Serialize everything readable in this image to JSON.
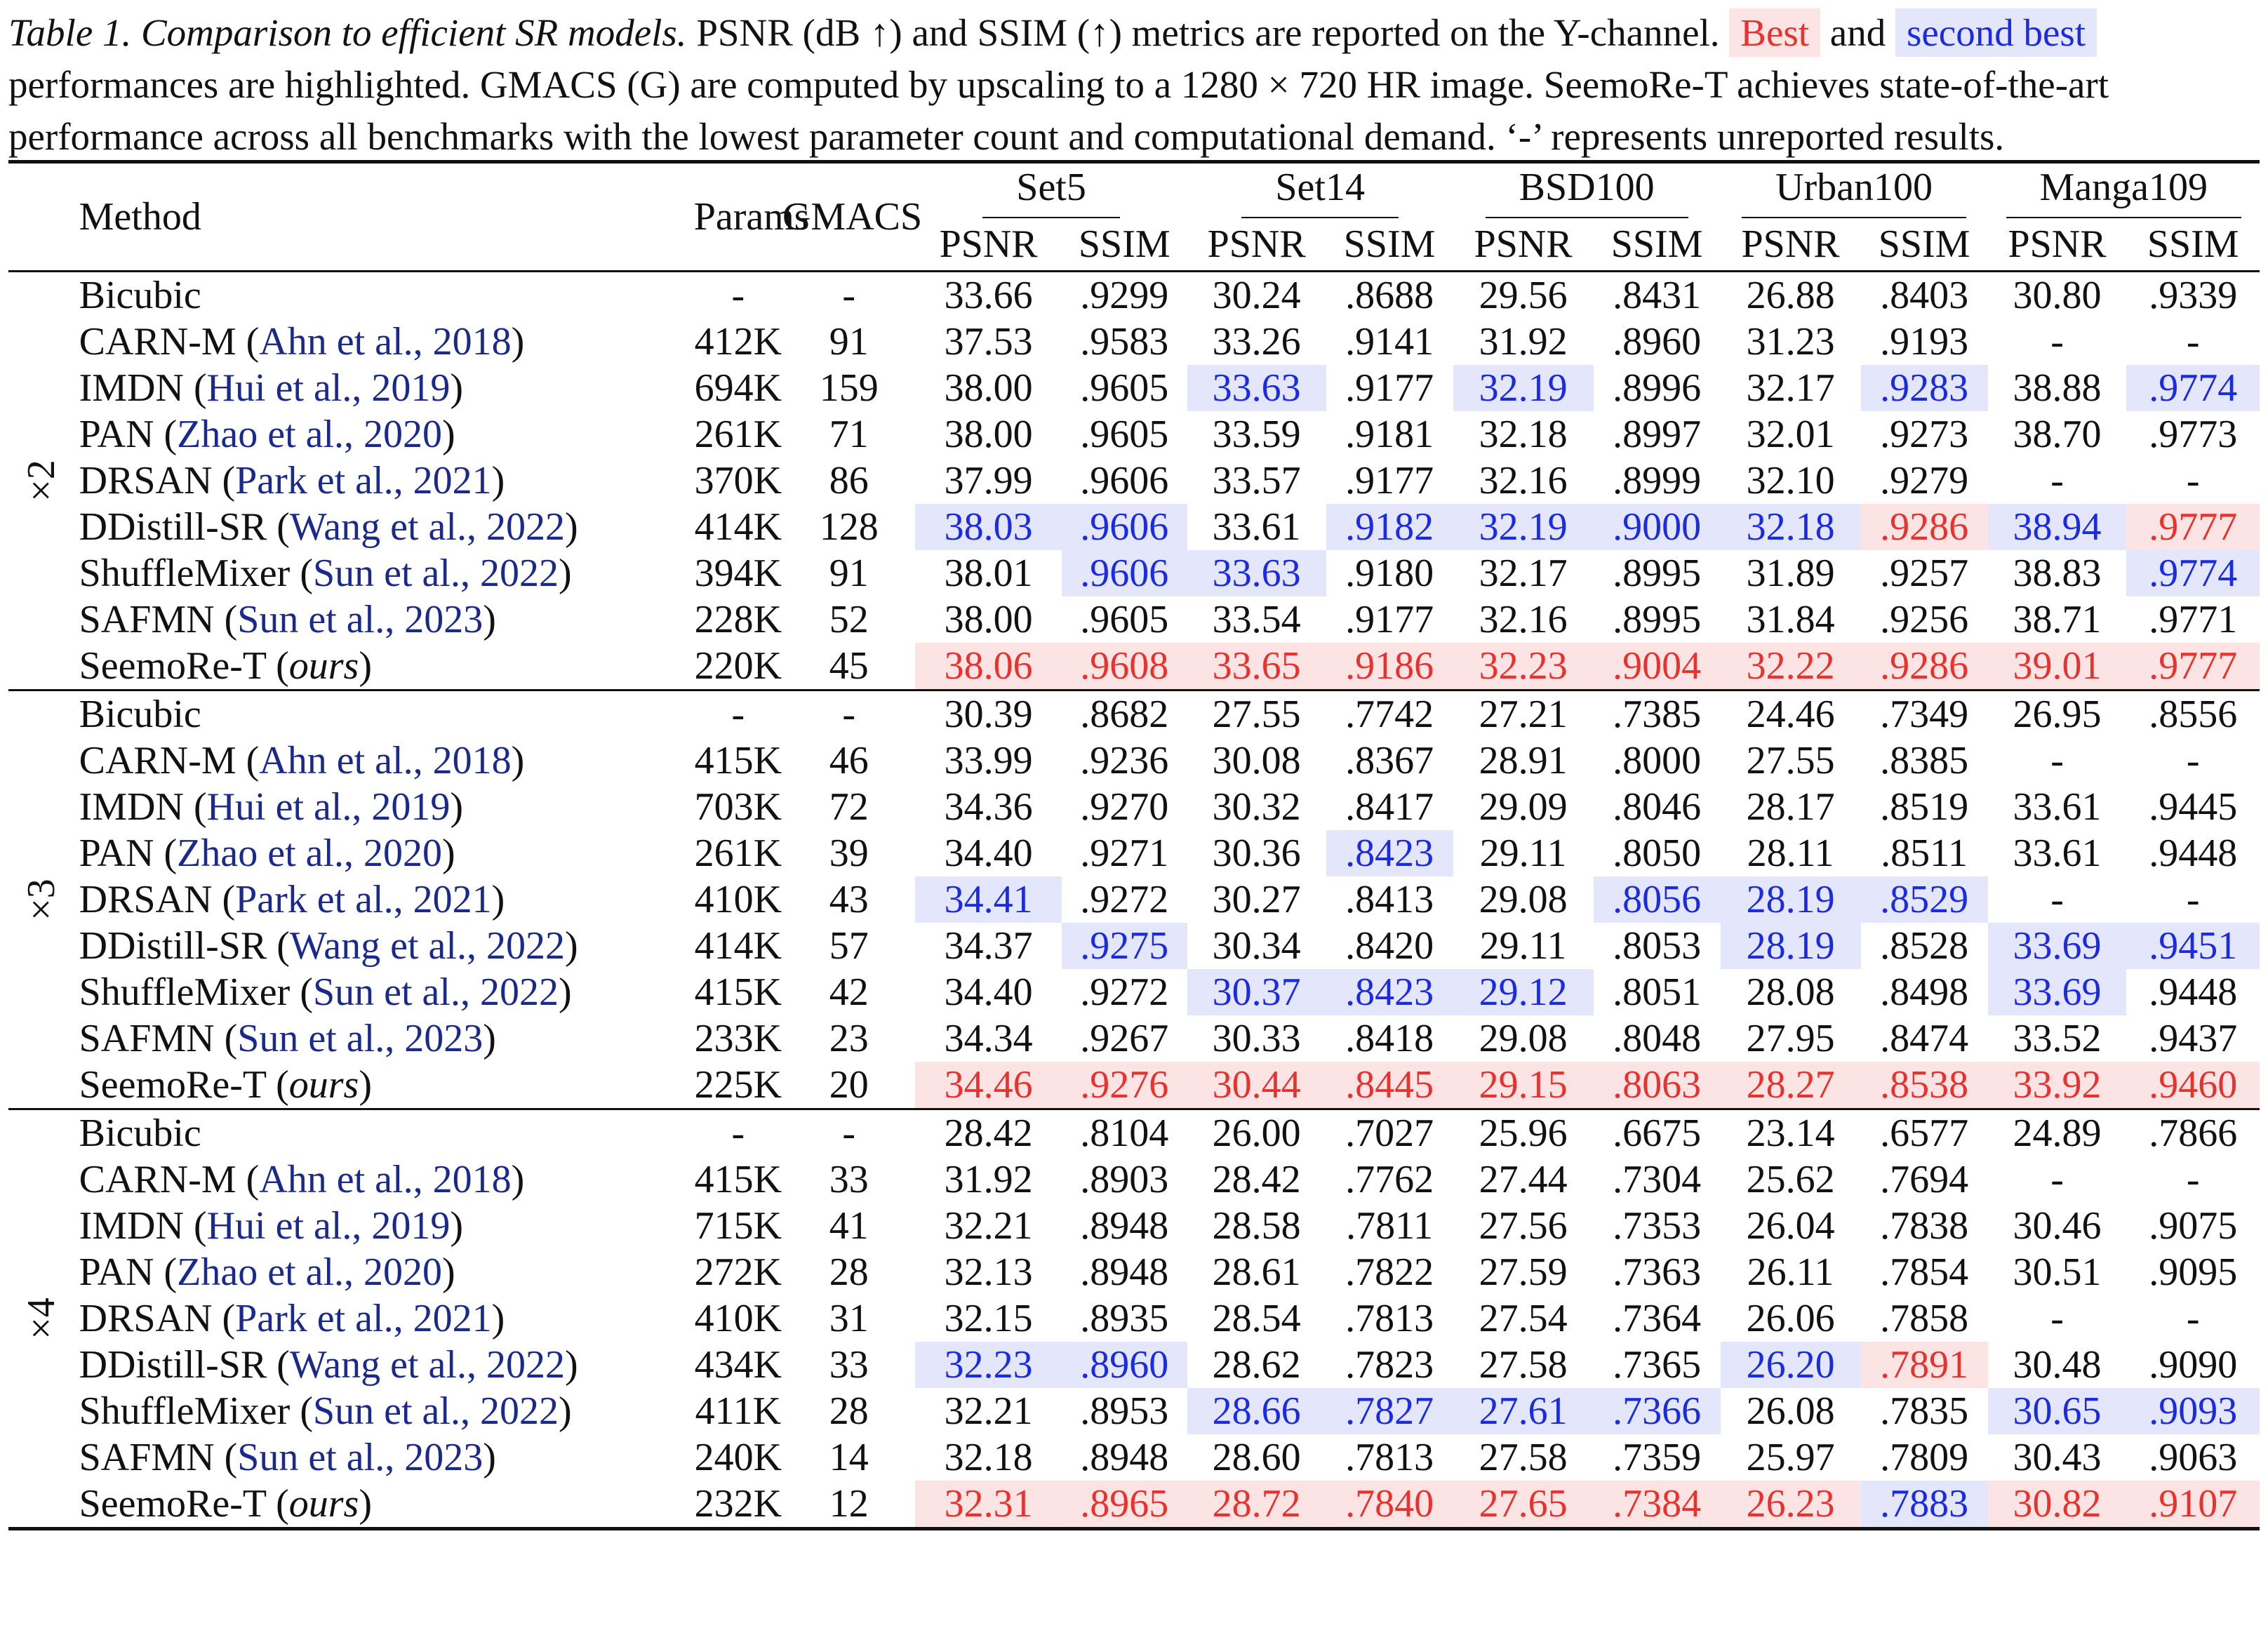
{
  "caption": {
    "label": "Table 1.",
    "title": "Comparison to efficient SR models.",
    "line1_a": "PSNR (dB ↑) and SSIM (↑) metrics are reported on the Y-channel.",
    "best_label": "Best",
    "and_word": "and",
    "second_label": "second best",
    "line2": "performances are highlighted. GMACS (G) are computed by upscaling to a 1280 × 720 HR image. SeemoRe-T achieves state-of-the-art",
    "line3": "performance across all benchmarks with the lowest parameter count and computational demand. ‘-’ represents unreported results."
  },
  "header": {
    "method": "Method",
    "params": "Params",
    "gmacs": "GMACS",
    "datasets": [
      "Set5",
      "Set14",
      "BSD100",
      "Urban100",
      "Manga109"
    ],
    "psnr": "PSNR",
    "ssim": "SSIM"
  },
  "highlight_colors": {
    "best": "#e8322d",
    "best_bg": "#fce4e4",
    "second": "#1b2be0",
    "second_bg": "#e4e6fb"
  },
  "groups": [
    {
      "scale": "×2",
      "rows": [
        {
          "name": "Bicubic",
          "cite": "",
          "params": "-",
          "gmacs": "-",
          "vals": [
            "33.66",
            ".9299",
            "30.24",
            ".8688",
            "29.56",
            ".8431",
            "26.88",
            ".8403",
            "30.80",
            ".9339"
          ],
          "hl": [
            "",
            "",
            "",
            "",
            "",
            "",
            "",
            "",
            "",
            ""
          ]
        },
        {
          "name": "CARN-M",
          "cite": "Ahn et al., 2018",
          "params": "412K",
          "gmacs": "91",
          "vals": [
            "37.53",
            ".9583",
            "33.26",
            ".9141",
            "31.92",
            ".8960",
            "31.23",
            ".9193",
            "-",
            "-"
          ],
          "hl": [
            "",
            "",
            "",
            "",
            "",
            "",
            "",
            "",
            "",
            ""
          ]
        },
        {
          "name": "IMDN",
          "cite": "Hui et al., 2019",
          "params": "694K",
          "gmacs": "159",
          "vals": [
            "38.00",
            ".9605",
            "33.63",
            ".9177",
            "32.19",
            ".8996",
            "32.17",
            ".9283",
            "38.88",
            ".9774"
          ],
          "hl": [
            "",
            "",
            "s",
            "",
            "s",
            "",
            "",
            "s",
            "",
            "s"
          ]
        },
        {
          "name": "PAN",
          "cite": "Zhao et al., 2020",
          "params": "261K",
          "gmacs": "71",
          "vals": [
            "38.00",
            ".9605",
            "33.59",
            ".9181",
            "32.18",
            ".8997",
            "32.01",
            ".9273",
            "38.70",
            ".9773"
          ],
          "hl": [
            "",
            "",
            "",
            "",
            "",
            "",
            "",
            "",
            "",
            ""
          ]
        },
        {
          "name": "DRSAN",
          "cite": "Park et al., 2021",
          "params": "370K",
          "gmacs": "86",
          "vals": [
            "37.99",
            ".9606",
            "33.57",
            ".9177",
            "32.16",
            ".8999",
            "32.10",
            ".9279",
            "-",
            "-"
          ],
          "hl": [
            "",
            "",
            "",
            "",
            "",
            "",
            "",
            "",
            "",
            ""
          ]
        },
        {
          "name": "DDistill-SR",
          "cite": "Wang et al., 2022",
          "params": "414K",
          "gmacs": "128",
          "vals": [
            "38.03",
            ".9606",
            "33.61",
            ".9182",
            "32.19",
            ".9000",
            "32.18",
            ".9286",
            "38.94",
            ".9777"
          ],
          "hl": [
            "s",
            "s",
            "",
            "s",
            "s",
            "s",
            "s",
            "b",
            "s",
            "b"
          ]
        },
        {
          "name": "ShuffleMixer",
          "cite": "Sun et al., 2022",
          "params": "394K",
          "gmacs": "91",
          "vals": [
            "38.01",
            ".9606",
            "33.63",
            ".9180",
            "32.17",
            ".8995",
            "31.89",
            ".9257",
            "38.83",
            ".9774"
          ],
          "hl": [
            "",
            "s",
            "s",
            "",
            "",
            "",
            "",
            "",
            "",
            "s"
          ]
        },
        {
          "name": "SAFMN",
          "cite": "Sun et al., 2023",
          "params": "228K",
          "gmacs": "52",
          "vals": [
            "38.00",
            ".9605",
            "33.54",
            ".9177",
            "32.16",
            ".8995",
            "31.84",
            ".9256",
            "38.71",
            ".9771"
          ],
          "hl": [
            "",
            "",
            "",
            "",
            "",
            "",
            "",
            "",
            "",
            ""
          ]
        },
        {
          "name": "SeemoRe-T",
          "ours": "ours",
          "cite": "",
          "params": "220K",
          "gmacs": "45",
          "vals": [
            "38.06",
            ".9608",
            "33.65",
            ".9186",
            "32.23",
            ".9004",
            "32.22",
            ".9286",
            "39.01",
            ".9777"
          ],
          "hl": [
            "b",
            "b",
            "b",
            "b",
            "b",
            "b",
            "b",
            "b",
            "b",
            "b"
          ]
        }
      ]
    },
    {
      "scale": "×3",
      "rows": [
        {
          "name": "Bicubic",
          "cite": "",
          "params": "-",
          "gmacs": "-",
          "vals": [
            "30.39",
            ".8682",
            "27.55",
            ".7742",
            "27.21",
            ".7385",
            "24.46",
            ".7349",
            "26.95",
            ".8556"
          ],
          "hl": [
            "",
            "",
            "",
            "",
            "",
            "",
            "",
            "",
            "",
            ""
          ]
        },
        {
          "name": "CARN-M",
          "cite": "Ahn et al., 2018",
          "params": "415K",
          "gmacs": "46",
          "vals": [
            "33.99",
            ".9236",
            "30.08",
            ".8367",
            "28.91",
            ".8000",
            "27.55",
            ".8385",
            "-",
            "-"
          ],
          "hl": [
            "",
            "",
            "",
            "",
            "",
            "",
            "",
            "",
            "",
            ""
          ]
        },
        {
          "name": "IMDN",
          "cite": "Hui et al., 2019",
          "params": "703K",
          "gmacs": "72",
          "vals": [
            "34.36",
            ".9270",
            "30.32",
            ".8417",
            "29.09",
            ".8046",
            "28.17",
            ".8519",
            "33.61",
            ".9445"
          ],
          "hl": [
            "",
            "",
            "",
            "",
            "",
            "",
            "",
            "",
            "",
            ""
          ]
        },
        {
          "name": "PAN",
          "cite": "Zhao et al., 2020",
          "params": "261K",
          "gmacs": "39",
          "vals": [
            "34.40",
            ".9271",
            "30.36",
            ".8423",
            "29.11",
            ".8050",
            "28.11",
            ".8511",
            "33.61",
            ".9448"
          ],
          "hl": [
            "",
            "",
            "",
            "s",
            "",
            "",
            "",
            "",
            "",
            ""
          ]
        },
        {
          "name": "DRSAN",
          "cite": "Park et al., 2021",
          "params": "410K",
          "gmacs": "43",
          "vals": [
            "34.41",
            ".9272",
            "30.27",
            ".8413",
            "29.08",
            ".8056",
            "28.19",
            ".8529",
            "-",
            "-"
          ],
          "hl": [
            "s",
            "",
            "",
            "",
            "",
            "s",
            "s",
            "s",
            "",
            ""
          ]
        },
        {
          "name": "DDistill-SR",
          "cite": "Wang et al., 2022",
          "params": "414K",
          "gmacs": "57",
          "vals": [
            "34.37",
            ".9275",
            "30.34",
            ".8420",
            "29.11",
            ".8053",
            "28.19",
            ".8528",
            "33.69",
            ".9451"
          ],
          "hl": [
            "",
            "s",
            "",
            "",
            "",
            "",
            "s",
            "",
            "s",
            "s"
          ]
        },
        {
          "name": "ShuffleMixer",
          "cite": "Sun et al., 2022",
          "params": "415K",
          "gmacs": "42",
          "vals": [
            "34.40",
            ".9272",
            "30.37",
            ".8423",
            "29.12",
            ".8051",
            "28.08",
            ".8498",
            "33.69",
            ".9448"
          ],
          "hl": [
            "",
            "",
            "s",
            "s",
            "s",
            "",
            "",
            "",
            "s",
            ""
          ]
        },
        {
          "name": "SAFMN",
          "cite": "Sun et al., 2023",
          "params": "233K",
          "gmacs": "23",
          "vals": [
            "34.34",
            ".9267",
            "30.33",
            ".8418",
            "29.08",
            ".8048",
            "27.95",
            ".8474",
            "33.52",
            ".9437"
          ],
          "hl": [
            "",
            "",
            "",
            "",
            "",
            "",
            "",
            "",
            "",
            ""
          ]
        },
        {
          "name": "SeemoRe-T",
          "ours": "ours",
          "cite": "",
          "params": "225K",
          "gmacs": "20",
          "vals": [
            "34.46",
            ".9276",
            "30.44",
            ".8445",
            "29.15",
            ".8063",
            "28.27",
            ".8538",
            "33.92",
            ".9460"
          ],
          "hl": [
            "b",
            "b",
            "b",
            "b",
            "b",
            "b",
            "b",
            "b",
            "b",
            "b"
          ]
        }
      ]
    },
    {
      "scale": "×4",
      "rows": [
        {
          "name": "Bicubic",
          "cite": "",
          "params": "-",
          "gmacs": "-",
          "vals": [
            "28.42",
            ".8104",
            "26.00",
            ".7027",
            "25.96",
            ".6675",
            "23.14",
            ".6577",
            "24.89",
            ".7866"
          ],
          "hl": [
            "",
            "",
            "",
            "",
            "",
            "",
            "",
            "",
            "",
            ""
          ]
        },
        {
          "name": "CARN-M",
          "cite": "Ahn et al., 2018",
          "params": "415K",
          "gmacs": "33",
          "vals": [
            "31.92",
            ".8903",
            "28.42",
            ".7762",
            "27.44",
            ".7304",
            "25.62",
            ".7694",
            "-",
            "-"
          ],
          "hl": [
            "",
            "",
            "",
            "",
            "",
            "",
            "",
            "",
            "",
            ""
          ]
        },
        {
          "name": "IMDN",
          "cite": "Hui et al., 2019",
          "params": "715K",
          "gmacs": "41",
          "vals": [
            "32.21",
            ".8948",
            "28.58",
            ".7811",
            "27.56",
            ".7353",
            "26.04",
            ".7838",
            "30.46",
            ".9075"
          ],
          "hl": [
            "",
            "",
            "",
            "",
            "",
            "",
            "",
            "",
            "",
            ""
          ]
        },
        {
          "name": "PAN",
          "cite": "Zhao et al., 2020",
          "params": "272K",
          "gmacs": "28",
          "vals": [
            "32.13",
            ".8948",
            "28.61",
            ".7822",
            "27.59",
            ".7363",
            "26.11",
            ".7854",
            "30.51",
            ".9095"
          ],
          "hl": [
            "",
            "",
            "",
            "",
            "",
            "",
            "",
            "",
            "",
            ""
          ]
        },
        {
          "name": "DRSAN",
          "cite": "Park et al., 2021",
          "params": "410K",
          "gmacs": "31",
          "vals": [
            "32.15",
            ".8935",
            "28.54",
            ".7813",
            "27.54",
            ".7364",
            "26.06",
            ".7858",
            "-",
            "-"
          ],
          "hl": [
            "",
            "",
            "",
            "",
            "",
            "",
            "",
            "",
            "",
            ""
          ]
        },
        {
          "name": "DDistill-SR",
          "cite": "Wang et al., 2022",
          "params": "434K",
          "gmacs": "33",
          "vals": [
            "32.23",
            ".8960",
            "28.62",
            ".7823",
            "27.58",
            ".7365",
            "26.20",
            ".7891",
            "30.48",
            ".9090"
          ],
          "hl": [
            "s",
            "s",
            "",
            "",
            "",
            "",
            "s",
            "b",
            "",
            ""
          ]
        },
        {
          "name": "ShuffleMixer",
          "cite": "Sun et al., 2022",
          "params": "411K",
          "gmacs": "28",
          "vals": [
            "32.21",
            ".8953",
            "28.66",
            ".7827",
            "27.61",
            ".7366",
            "26.08",
            ".7835",
            "30.65",
            ".9093"
          ],
          "hl": [
            "",
            "",
            "s",
            "s",
            "s",
            "s",
            "",
            "",
            "s",
            "s"
          ]
        },
        {
          "name": "SAFMN",
          "cite": "Sun et al., 2023",
          "params": "240K",
          "gmacs": "14",
          "vals": [
            "32.18",
            ".8948",
            "28.60",
            ".7813",
            "27.58",
            ".7359",
            "25.97",
            ".7809",
            "30.43",
            ".9063"
          ],
          "hl": [
            "",
            "",
            "",
            "",
            "",
            "",
            "",
            "",
            "",
            ""
          ]
        },
        {
          "name": "SeemoRe-T",
          "ours": "ours",
          "cite": "",
          "params": "232K",
          "gmacs": "12",
          "vals": [
            "32.31",
            ".8965",
            "28.72",
            ".7840",
            "27.65",
            ".7384",
            "26.23",
            ".7883",
            "30.82",
            ".9107"
          ],
          "hl": [
            "b",
            "b",
            "b",
            "b",
            "b",
            "b",
            "b",
            "s",
            "b",
            "b"
          ]
        }
      ]
    }
  ]
}
